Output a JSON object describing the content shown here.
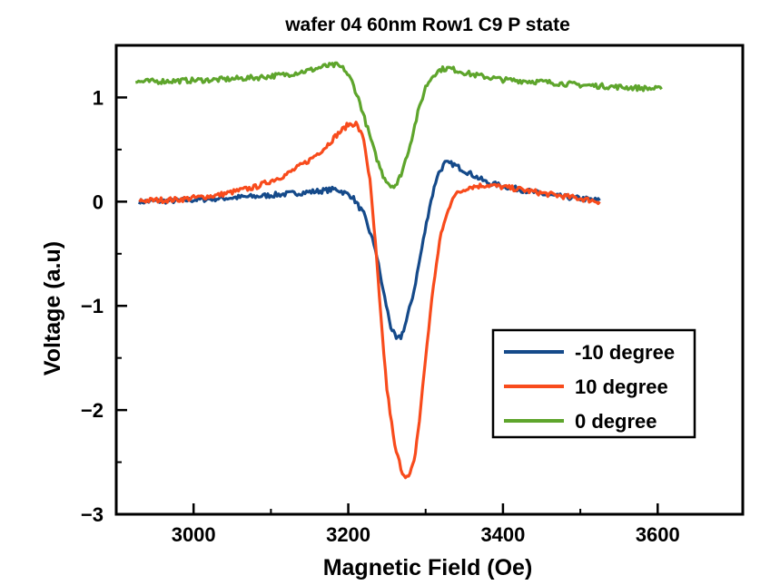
{
  "chart_data": {
    "type": "line",
    "title": "wafer 04 60nm Row1 C9 P state",
    "xlabel": "Magnetic Field (Oe)",
    "ylabel": "Voltage (a.u)",
    "xlim": [
      2900,
      3710
    ],
    "ylim": [
      -3,
      1.5
    ],
    "xticks": [
      3000,
      3200,
      3400,
      3600
    ],
    "xticks_minor": [
      3100,
      3300,
      3500
    ],
    "yticks": [
      -3,
      -2,
      -1,
      0,
      1
    ],
    "ytick_labels": [
      "−3",
      "−2",
      "−1",
      "0",
      "1"
    ],
    "grid": false,
    "legend_position": "bottom-right",
    "series": [
      {
        "name": "-10 degree",
        "color": "#154a8a",
        "x": [
          2930,
          2980,
          3030,
          3080,
          3130,
          3160,
          3185,
          3205,
          3220,
          3235,
          3245,
          3255,
          3262,
          3268,
          3275,
          3285,
          3295,
          3305,
          3315,
          3325,
          3335,
          3350,
          3380,
          3420,
          3460,
          3500,
          3525
        ],
        "y": [
          0.0,
          0.01,
          0.03,
          0.05,
          0.08,
          0.1,
          0.12,
          0.05,
          -0.12,
          -0.45,
          -0.85,
          -1.2,
          -1.32,
          -1.3,
          -1.15,
          -0.85,
          -0.45,
          -0.05,
          0.25,
          0.37,
          0.36,
          0.3,
          0.18,
          0.12,
          0.06,
          0.03,
          0.01
        ]
      },
      {
        "name": "10 degree",
        "color": "#f84b1c",
        "x": [
          2930,
          2980,
          3030,
          3080,
          3120,
          3150,
          3170,
          3185,
          3200,
          3210,
          3220,
          3228,
          3235,
          3242,
          3250,
          3260,
          3270,
          3278,
          3285,
          3292,
          3300,
          3310,
          3320,
          3335,
          3355,
          3380,
          3420,
          3460,
          3500,
          3525
        ],
        "y": [
          0.01,
          0.02,
          0.06,
          0.14,
          0.26,
          0.4,
          0.52,
          0.64,
          0.74,
          0.75,
          0.6,
          0.2,
          -0.4,
          -1.1,
          -1.8,
          -2.35,
          -2.6,
          -2.65,
          -2.5,
          -2.1,
          -1.5,
          -0.8,
          -0.3,
          0.05,
          0.14,
          0.16,
          0.12,
          0.07,
          0.03,
          0.0
        ]
      },
      {
        "name": "0 degree",
        "color": "#5ea52c",
        "x": [
          2925,
          2980,
          3030,
          3080,
          3120,
          3150,
          3170,
          3185,
          3195,
          3205,
          3215,
          3225,
          3235,
          3245,
          3255,
          3263,
          3270,
          3280,
          3290,
          3300,
          3310,
          3320,
          3330,
          3340,
          3360,
          3400,
          3450,
          3500,
          3550,
          3605
        ],
        "y": [
          1.15,
          1.16,
          1.17,
          1.19,
          1.22,
          1.26,
          1.3,
          1.31,
          1.27,
          1.15,
          0.95,
          0.7,
          0.45,
          0.25,
          0.15,
          0.17,
          0.3,
          0.55,
          0.85,
          1.1,
          1.22,
          1.27,
          1.28,
          1.26,
          1.22,
          1.17,
          1.15,
          1.12,
          1.1,
          1.08
        ]
      }
    ]
  }
}
